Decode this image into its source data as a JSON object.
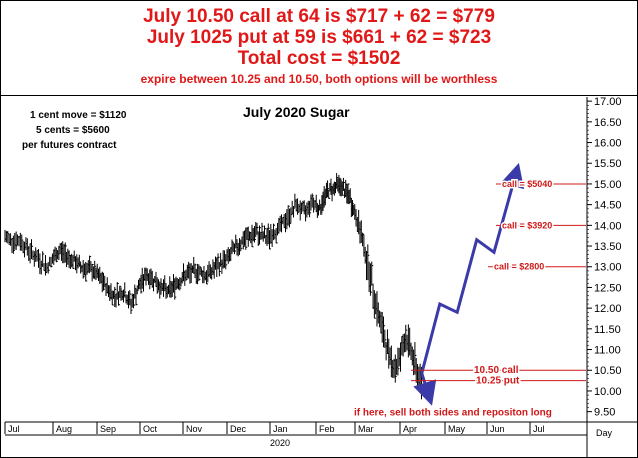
{
  "header": {
    "line1": "July 10.50 call at 64 is $717 + 62 = $779",
    "line2": "July 1025 put at 59 is $661 + 62 = $723",
    "line3": "Total cost = $1502",
    "line4": "expire between 10.25 and 10.50, both options will be worthless"
  },
  "notes": {
    "line1": "1 cent move = $1120",
    "line2": "5 cents = $5600",
    "line3": "per futures contract"
  },
  "chart_data": {
    "type": "bar",
    "title": "July 2020 Sugar",
    "x_axis_label": "Day",
    "year_label": "2020",
    "months": [
      "Jul",
      "Aug",
      "Sep",
      "Oct",
      "Nov",
      "Dec",
      "Jan",
      "Feb",
      "Mar",
      "Apr",
      "May",
      "Jun",
      "Jul"
    ],
    "ylim": [
      9.25,
      17.1
    ],
    "y_ticks": [
      "9.50",
      "10.00",
      "10.50",
      "11.00",
      "11.50",
      "12.00",
      "12.50",
      "13.00",
      "13.50",
      "14.00",
      "14.50",
      "15.00",
      "15.50",
      "16.00",
      "16.50",
      "17.00"
    ],
    "price_path": [
      [
        0,
        13.7
      ],
      [
        6,
        13.6
      ],
      [
        10,
        13.3
      ],
      [
        15,
        13.0
      ],
      [
        20,
        13.4
      ],
      [
        24,
        13.2
      ],
      [
        28,
        13.0
      ],
      [
        33,
        12.9
      ],
      [
        37,
        12.6
      ],
      [
        41,
        12.3
      ],
      [
        45,
        12.4
      ],
      [
        48,
        12.1
      ],
      [
        51,
        12.5
      ],
      [
        54,
        12.8
      ],
      [
        57,
        12.7
      ],
      [
        60,
        12.5
      ],
      [
        63,
        12.4
      ],
      [
        66,
        12.6
      ],
      [
        70,
        12.8
      ],
      [
        74,
        12.9
      ],
      [
        78,
        12.8
      ],
      [
        82,
        13.0
      ],
      [
        86,
        13.2
      ],
      [
        90,
        13.5
      ],
      [
        94,
        13.7
      ],
      [
        98,
        13.8
      ],
      [
        102,
        13.7
      ],
      [
        106,
        13.9
      ],
      [
        110,
        14.2
      ],
      [
        113,
        14.5
      ],
      [
        116,
        14.3
      ],
      [
        119,
        14.6
      ],
      [
        122,
        14.4
      ],
      [
        125,
        14.8
      ],
      [
        128,
        14.9
      ],
      [
        130,
        15.0
      ],
      [
        132,
        14.9
      ],
      [
        135,
        14.7
      ],
      [
        138,
        14.2
      ],
      [
        141,
        13.5
      ],
      [
        144,
        12.6
      ],
      [
        147,
        11.7
      ],
      [
        150,
        11.0
      ],
      [
        153,
        10.5
      ],
      [
        155,
        10.9
      ],
      [
        157,
        11.3
      ],
      [
        159,
        11.0
      ],
      [
        161,
        10.5
      ],
      [
        163,
        10.2
      ]
    ],
    "projection": [
      [
        163,
        10.4
      ],
      [
        170,
        12.1
      ],
      [
        177,
        11.9
      ],
      [
        185,
        13.65
      ],
      [
        192,
        13.35
      ],
      [
        201,
        15.3
      ]
    ],
    "down_arrow": [
      [
        163,
        10.45
      ],
      [
        166,
        9.85
      ]
    ],
    "annotations": [
      {
        "text": "call = $5040",
        "value": 15.0
      },
      {
        "text": "call = $3920",
        "value": 14.0
      },
      {
        "text": "call = $2800",
        "value": 13.0
      },
      {
        "text": "10.50 call",
        "value": 10.5
      },
      {
        "text": "10.25 put",
        "value": 10.25
      },
      {
        "text": "if here, sell both sides and repositon long",
        "value": 9.5
      }
    ]
  }
}
